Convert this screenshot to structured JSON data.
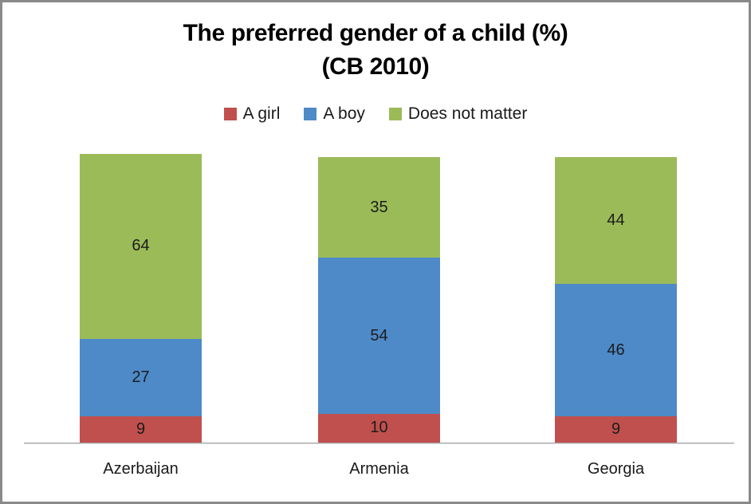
{
  "frame": {
    "border_color": "#8a8a8a",
    "background": "#ffffff"
  },
  "title": {
    "line1": "The preferred gender of a child (%)",
    "line2": "(CB 2010)"
  },
  "chart_data": {
    "type": "bar",
    "stacked": true,
    "orientation": "vertical",
    "title": "The preferred gender of a child (%) (CB 2010)",
    "categories": [
      "Azerbaijan",
      "Armenia",
      "Georgia"
    ],
    "series": [
      {
        "name": "A girl",
        "color": "#c0504d",
        "values": [
          9,
          10,
          9
        ]
      },
      {
        "name": "A boy",
        "color": "#4e8ac8",
        "values": [
          27,
          54,
          46
        ]
      },
      {
        "name": "Does not matter",
        "color": "#9bbb59",
        "values": [
          64,
          35,
          44
        ]
      }
    ],
    "ylim": [
      0,
      100
    ],
    "grid": false,
    "data_labels": true,
    "legend_position": "top",
    "axis_line_color": "#a9a9a9",
    "label_color": "#1c1c1c"
  }
}
